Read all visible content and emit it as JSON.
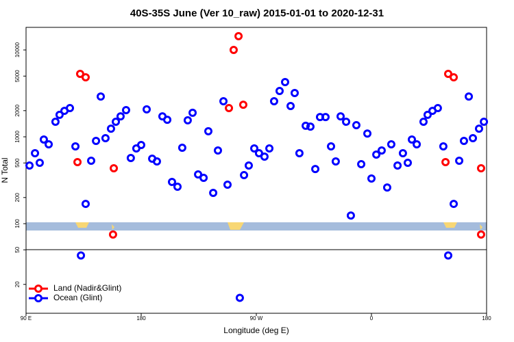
{
  "chart_data": {
    "type": "scatter",
    "title": "40S-35S June (Ver 10_raw)   2015-01-01 to 2020-12-31",
    "x_label": "Longitude (deg E)",
    "y_label": "N Total",
    "xlim": [
      90,
      450
    ],
    "xticks": [
      {
        "value": 90,
        "label": "90 E"
      },
      180,
      {
        "value": 270,
        "label": "90 W"
      },
      {
        "value": 360,
        "label": "0"
      },
      {
        "value": 450,
        "label": "180"
      }
    ],
    "ylim": [
      9.3,
      18200
    ],
    "log_y": true,
    "yticks": [
      20,
      50,
      100,
      200,
      500,
      1000,
      2000,
      5000,
      10000
    ],
    "legend": "bottom-left",
    "series": [
      {
        "name": "Land (Nadir&Glint)",
        "color": "#ff0000",
        "x": [
          130.2,
          132.3,
          136.6,
          158.6,
          158.0,
          248.6,
          252.3,
          256.1,
          259.8,
          417.9,
          420.0,
          424.3,
          445.7,
          445.7
        ],
        "values": [
          511,
          5300,
          4840,
          434,
          75,
          2140,
          10000,
          14400,
          2340,
          511,
          5300,
          4840,
          434,
          75
        ]
      },
      {
        "name": "Ocean (Glint)",
        "color": "#0000ff",
        "x": [
          92.7,
          97.0,
          100.7,
          103.9,
          107.7,
          113.0,
          116.2,
          120.0,
          124.3,
          128.6,
          132.9,
          136.6,
          140.9,
          144.7,
          148.4,
          152.1,
          156.4,
          160.2,
          163.9,
          168.2,
          171.9,
          176.2,
          180.0,
          184.3,
          188.6,
          192.3,
          196.6,
          200.4,
          204.1,
          208.4,
          212.1,
          216.4,
          220.2,
          224.5,
          228.8,
          232.5,
          236.3,
          240.0,
          244.3,
          247.5,
          257.1,
          260.4,
          264.1,
          268.4,
          272.1,
          276.4,
          280.2,
          283.9,
          288.2,
          292.5,
          296.8,
          300.0,
          303.7,
          308.6,
          312.3,
          316.1,
          319.8,
          324.1,
          328.4,
          332.1,
          335.9,
          340.2,
          343.9,
          348.2,
          352.0,
          356.8,
          360.0,
          363.8,
          368.0,
          372.3,
          375.5,
          380.4,
          384.6,
          388.4,
          391.6,
          395.4,
          400.7,
          403.9,
          407.7,
          411.9,
          416.2,
          420.0,
          424.3,
          428.6,
          432.3,
          436.1,
          439.3,
          444.1,
          447.9
        ],
        "values": [
          467,
          647,
          502,
          931,
          819,
          1490,
          1790,
          1990,
          2140,
          776,
          43,
          169,
          530,
          897,
          2910,
          964,
          1240,
          1490,
          1720,
          2030,
          570,
          735,
          805,
          2070,
          560,
          521,
          1720,
          1570,
          302,
          266,
          748,
          1550,
          1890,
          369,
          337,
          1160,
          226,
          696,
          2570,
          281,
          14,
          362,
          467,
          735,
          647,
          591,
          735,
          2570,
          3370,
          4270,
          2260,
          3190,
          647,
          1340,
          1310,
          426,
          1690,
          1690,
          776,
          521,
          1720,
          1490,
          124,
          1360,
          484,
          1090,
          331,
          624,
          696,
          261,
          819,
          467,
          647,
          502,
          931,
          819,
          1490,
          1790,
          1990,
          2140,
          776,
          43,
          169,
          530,
          897,
          2910,
          964,
          1240,
          1490
        ]
      }
    ]
  }
}
